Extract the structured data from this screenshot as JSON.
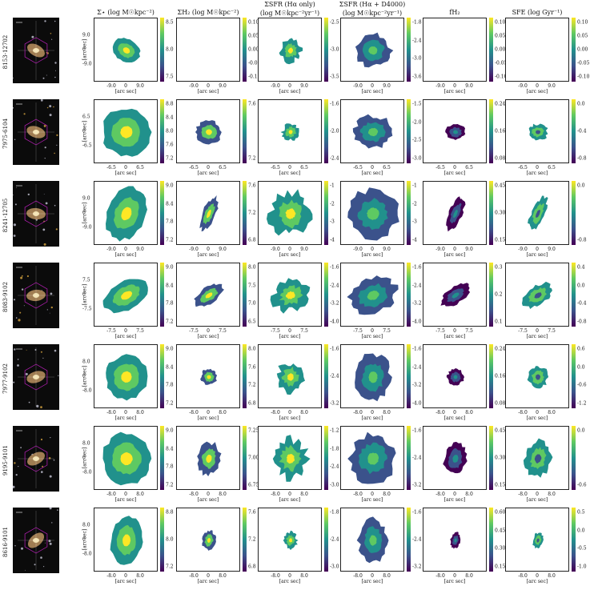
{
  "column_titles": [
    {
      "line1": "Σ⋆ (log M☉kpc⁻²)",
      "line2": ""
    },
    {
      "line1": "ΣH₂ (log M☉kpc⁻²)",
      "line2": ""
    },
    {
      "line1": "ΣSFR (Hα only)",
      "line2": "(log M☉kpc⁻²yr⁻¹)"
    },
    {
      "line1": "ΣSFR (Hα + D4000)",
      "line2": "(log M☉kpc⁻²yr⁻¹)"
    },
    {
      "line1": "fH₂",
      "line2": ""
    },
    {
      "line1": "SFE (log Gyr⁻¹)",
      "line2": ""
    }
  ],
  "axis_label": "[arc sec]",
  "rows": [
    {
      "plateifu": "8153-12702",
      "xticks": [
        "-9.0",
        "0",
        "9.0"
      ],
      "yticks": [
        "9.0",
        "0",
        "-9.0"
      ],
      "cbars": [
        [
          "8.5",
          "8.0",
          "7.5"
        ],
        [
          "0.10",
          "0.05",
          "0.00",
          "-0.05",
          "-0.10"
        ],
        [
          "-2.5",
          "-3.0",
          "-3.5"
        ],
        [
          "-1.8",
          "-2.4",
          "-3.0",
          "-3.6"
        ],
        [
          "0.10",
          "0.05",
          "0.00",
          "-0.05",
          "-0.10"
        ],
        [
          "0.10",
          "0.05",
          "0.00",
          "-0.05",
          "-0.10"
        ]
      ]
    },
    {
      "plateifu": "7975-6104",
      "xticks": [
        "-6.5",
        "0",
        "6.5"
      ],
      "yticks": [
        "6.5",
        "0",
        "-6.5"
      ],
      "cbars": [
        [
          "8.8",
          "8.4",
          "8.0",
          "7.6",
          "7.2"
        ],
        [
          "7.6",
          "7.2"
        ],
        [
          "-1.6",
          "-2.0",
          "-2.4"
        ],
        [
          "-1.5",
          "-2.0",
          "-2.5",
          "-3.0"
        ],
        [
          "0.24",
          "0.16",
          "0.08"
        ],
        [
          "0.0",
          "-0.4",
          "-0.8"
        ]
      ]
    },
    {
      "plateifu": "8241-12705",
      "xticks": [
        "-9.0",
        "0",
        "9.0"
      ],
      "yticks": [
        "9.0",
        "0",
        "-9.0"
      ],
      "cbars": [
        [
          "9.0",
          "8.4",
          "7.8",
          "7.2"
        ],
        [
          "7.6",
          "7.2",
          "6.8"
        ],
        [
          "-1",
          "-2",
          "-3",
          "-4"
        ],
        [
          "-1",
          "-2",
          "-3",
          "-4"
        ],
        [
          "0.45",
          "0.30",
          "0.15"
        ],
        [
          "0.0",
          "-0.8"
        ]
      ]
    },
    {
      "plateifu": "8083-9102",
      "xticks": [
        "-7.5",
        "0",
        "7.5"
      ],
      "yticks": [
        "7.5",
        "0",
        "-7.5"
      ],
      "cbars": [
        [
          "9.0",
          "8.4",
          "7.8",
          "7.2"
        ],
        [
          "8.0",
          "7.5",
          "7.0",
          "6.5"
        ],
        [
          "-1.6",
          "-2.4",
          "-3.2",
          "-4.0"
        ],
        [
          "-1.6",
          "-2.4",
          "-3.2",
          "-4.0"
        ],
        [
          "0.3",
          "0.2",
          "0.1"
        ],
        [
          "0.4",
          "0.0",
          "-0.4",
          "-0.8"
        ]
      ]
    },
    {
      "plateifu": "7977-9102",
      "xticks": [
        "-8.0",
        "0",
        "8.0"
      ],
      "yticks": [
        "8.0",
        "0",
        "-8.0"
      ],
      "cbars": [
        [
          "9.0",
          "8.4",
          "7.8",
          "7.2"
        ],
        [
          "8.0",
          "7.6",
          "7.2",
          "6.8"
        ],
        [
          "-1.6",
          "-2.4",
          "-3.2"
        ],
        [
          "-1.6",
          "-2.4",
          "-3.2",
          "-4.0"
        ],
        [
          "0.24",
          "0.16",
          "0.08"
        ],
        [
          "0.6",
          "0.0",
          "-0.6",
          "-1.2"
        ]
      ]
    },
    {
      "plateifu": "9195-9101",
      "xticks": [
        "-8.0",
        "0",
        "8.0"
      ],
      "yticks": [
        "8.0",
        "0",
        "-8.0"
      ],
      "cbars": [
        [
          "9.0",
          "8.4",
          "7.8",
          "7.2"
        ],
        [
          "7.25",
          "7.00",
          "6.75"
        ],
        [
          "-1.2",
          "-1.8",
          "-2.4",
          "-3.0"
        ],
        [
          "-1.6",
          "-2.4",
          "-3.2"
        ],
        [
          "0.45",
          "0.30",
          "0.15"
        ],
        [
          "0.0",
          "-0.6"
        ]
      ]
    },
    {
      "plateifu": "8616-9101",
      "xticks": [
        "-8.0",
        "0",
        "8.0"
      ],
      "yticks": [
        "8.0",
        "0",
        "-8.0"
      ],
      "cbars": [
        [
          "8.8",
          "8.0",
          "7.2"
        ],
        [
          "7.6",
          "7.2",
          "6.8"
        ],
        [
          "-1.8",
          "-2.4",
          "-3.0"
        ],
        [
          "-1.6",
          "-2.4",
          "-3.2"
        ],
        [
          "0.60",
          "0.45",
          "0.30",
          "0.15"
        ],
        [
          "0.5",
          "0.0",
          "-0.5",
          "-1.0"
        ]
      ]
    }
  ],
  "colors": {
    "viridis": [
      "#440154",
      "#3b528b",
      "#21918c",
      "#5ec962",
      "#fde725"
    ],
    "hexagon": "#c020c0"
  }
}
